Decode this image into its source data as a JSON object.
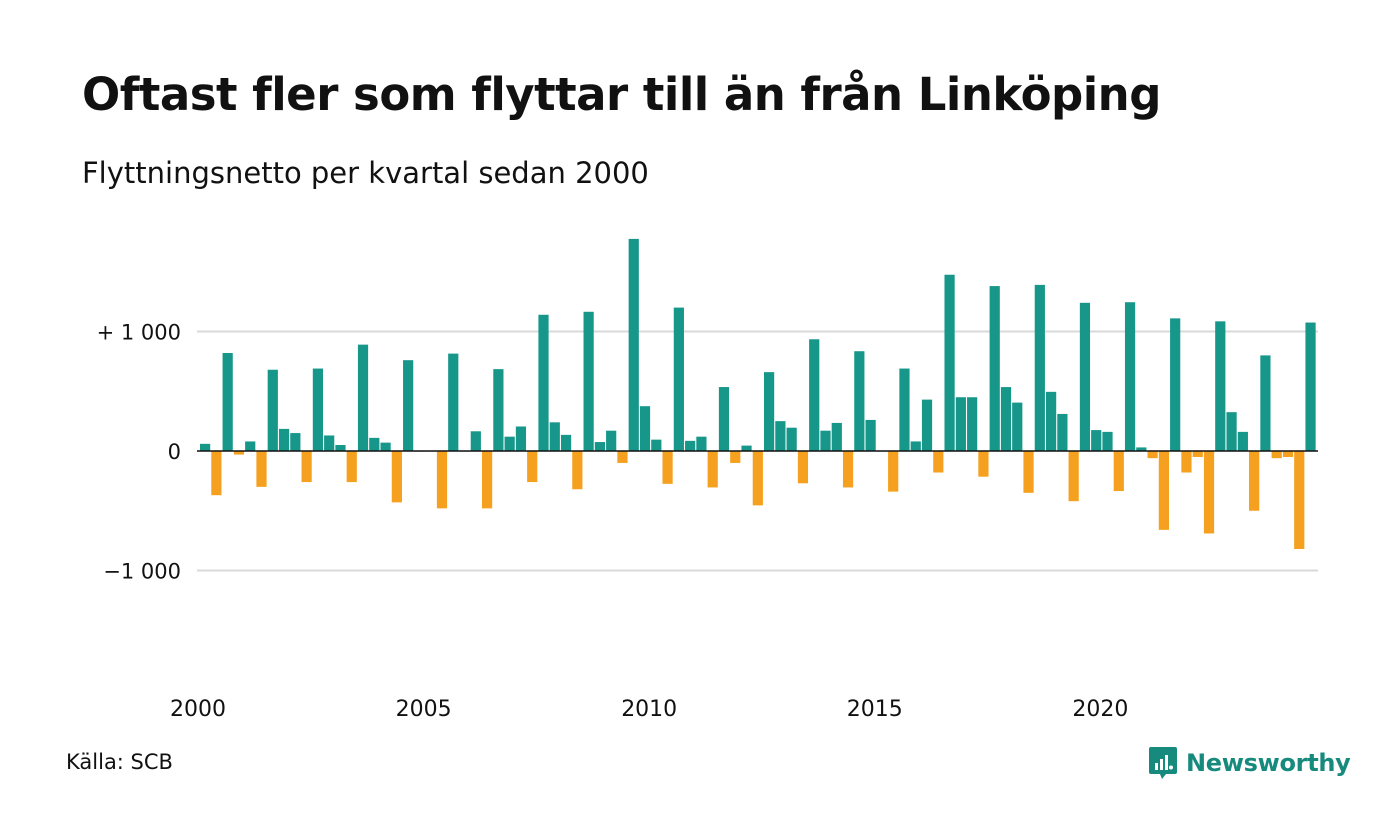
{
  "header": {
    "title": "Oftast fler som flyttar till än från Linköping",
    "subtitle": "Flyttningsnetto per kvartal sedan 2000"
  },
  "footer": {
    "source": "Källa: SCB",
    "brand": "Newsworthy"
  },
  "colors": {
    "positive": "#17968a",
    "negative": "#f5a11f",
    "grid": "#d9d9d9",
    "axis": "#111111",
    "brand": "#178a7e"
  },
  "chart_data": {
    "type": "bar",
    "title": "Oftast fler som flyttar till än från Linköping",
    "subtitle": "Flyttningsnetto per kvartal sedan 2000",
    "xlabel": "",
    "ylabel": "",
    "x_start_year": 2000,
    "periods_per_year": 4,
    "x_tick_labels": [
      "2000",
      "2005",
      "2010",
      "2015",
      "2020"
    ],
    "y_ticks": [
      {
        "value": 1000,
        "label": "+ 1 000"
      },
      {
        "value": 0,
        "label": "0"
      },
      {
        "value": -1000,
        "label": "−1 000"
      }
    ],
    "ylim": [
      -1950,
      1950
    ],
    "grid": true,
    "legend": "none",
    "series": [
      {
        "values": [
          60,
          -370,
          820,
          -30,
          80,
          -300,
          680,
          185,
          150,
          -260,
          690,
          130,
          50,
          -260,
          890,
          110,
          70,
          -430,
          760,
          0,
          -5,
          -480,
          815,
          0,
          165,
          -480,
          685,
          120,
          205,
          -260,
          1140,
          240,
          135,
          -320,
          1165,
          75,
          170,
          -100,
          1775,
          375,
          95,
          -275,
          1200,
          85,
          120,
          -305,
          535,
          -100,
          45,
          -455,
          660,
          250,
          195,
          -270,
          935,
          170,
          235,
          -305,
          835,
          260,
          0,
          -340,
          690,
          80,
          430,
          -180,
          1475,
          450,
          450,
          -215,
          1380,
          535,
          405,
          -350,
          1390,
          495,
          310,
          -420,
          1240,
          175,
          160,
          -335,
          1245,
          30,
          -60,
          -660,
          1110,
          -180,
          -50,
          -690,
          1085,
          325,
          160,
          -500,
          800,
          -60,
          -50,
          -820,
          1075
        ]
      }
    ]
  }
}
